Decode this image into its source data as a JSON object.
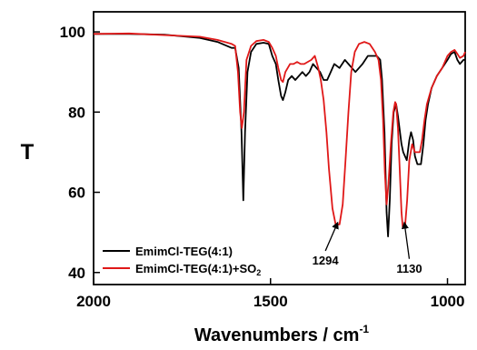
{
  "chart_data": {
    "type": "line",
    "title": "",
    "xlabel": "Wavenumbers / cm",
    "xlabel_superscript": "-1",
    "ylabel": "T",
    "xlim": [
      2000,
      950
    ],
    "ylim": [
      37,
      105
    ],
    "x_ticks": [
      2000,
      1500,
      1000
    ],
    "y_ticks": [
      40,
      60,
      80,
      100
    ],
    "legend_position": "bottom-left",
    "series": [
      {
        "name": "EmimCl-TEG(4:1)",
        "color": "#000000",
        "points": [
          [
            2000,
            99.5
          ],
          [
            1900,
            99.5
          ],
          [
            1800,
            99.3
          ],
          [
            1700,
            98.5
          ],
          [
            1650,
            97.5
          ],
          [
            1610,
            96
          ],
          [
            1600,
            96
          ],
          [
            1590,
            91
          ],
          [
            1582,
            75
          ],
          [
            1577,
            58
          ],
          [
            1572,
            75
          ],
          [
            1565,
            90
          ],
          [
            1555,
            95
          ],
          [
            1540,
            97
          ],
          [
            1520,
            97.3
          ],
          [
            1505,
            97
          ],
          [
            1495,
            94
          ],
          [
            1485,
            92
          ],
          [
            1478,
            88
          ],
          [
            1470,
            84
          ],
          [
            1465,
            83
          ],
          [
            1458,
            85
          ],
          [
            1450,
            88
          ],
          [
            1440,
            89
          ],
          [
            1430,
            88
          ],
          [
            1420,
            89
          ],
          [
            1410,
            90
          ],
          [
            1400,
            89
          ],
          [
            1390,
            90
          ],
          [
            1380,
            92
          ],
          [
            1370,
            91
          ],
          [
            1360,
            90
          ],
          [
            1350,
            88
          ],
          [
            1340,
            88
          ],
          [
            1330,
            90
          ],
          [
            1320,
            92
          ],
          [
            1305,
            91
          ],
          [
            1290,
            93
          ],
          [
            1280,
            92
          ],
          [
            1270,
            91
          ],
          [
            1260,
            90
          ],
          [
            1250,
            91
          ],
          [
            1240,
            92
          ],
          [
            1225,
            94
          ],
          [
            1210,
            94
          ],
          [
            1200,
            94
          ],
          [
            1190,
            93
          ],
          [
            1185,
            88
          ],
          [
            1178,
            75
          ],
          [
            1172,
            55
          ],
          [
            1168,
            49
          ],
          [
            1163,
            58
          ],
          [
            1158,
            72
          ],
          [
            1152,
            80
          ],
          [
            1145,
            82
          ],
          [
            1140,
            79
          ],
          [
            1130,
            72
          ],
          [
            1125,
            70
          ],
          [
            1115,
            68
          ],
          [
            1108,
            73
          ],
          [
            1103,
            75
          ],
          [
            1097,
            73
          ],
          [
            1092,
            69
          ],
          [
            1085,
            67
          ],
          [
            1075,
            67
          ],
          [
            1068,
            72
          ],
          [
            1062,
            78
          ],
          [
            1055,
            82
          ],
          [
            1045,
            86
          ],
          [
            1030,
            89
          ],
          [
            1015,
            91
          ],
          [
            1000,
            93
          ],
          [
            990,
            94.5
          ],
          [
            980,
            95
          ],
          [
            972,
            93
          ],
          [
            965,
            92
          ],
          [
            955,
            93
          ],
          [
            950,
            93
          ]
        ]
      },
      {
        "name": "EmimCl-TEG(4:1)+SO",
        "name_subscript": "2",
        "color": "#e01818",
        "points": [
          [
            2000,
            99.5
          ],
          [
            1900,
            99.6
          ],
          [
            1800,
            99.2
          ],
          [
            1700,
            98.8
          ],
          [
            1650,
            98
          ],
          [
            1610,
            97
          ],
          [
            1600,
            96.5
          ],
          [
            1592,
            90
          ],
          [
            1586,
            80
          ],
          [
            1581,
            76
          ],
          [
            1575,
            80
          ],
          [
            1568,
            93
          ],
          [
            1555,
            96.5
          ],
          [
            1540,
            97.7
          ],
          [
            1520,
            98
          ],
          [
            1505,
            97.5
          ],
          [
            1495,
            96
          ],
          [
            1485,
            94
          ],
          [
            1478,
            91
          ],
          [
            1470,
            88
          ],
          [
            1465,
            87.5
          ],
          [
            1458,
            90
          ],
          [
            1445,
            92
          ],
          [
            1435,
            92
          ],
          [
            1425,
            92.5
          ],
          [
            1415,
            92
          ],
          [
            1405,
            92
          ],
          [
            1395,
            92.5
          ],
          [
            1385,
            93
          ],
          [
            1375,
            94
          ],
          [
            1365,
            91
          ],
          [
            1358,
            88
          ],
          [
            1350,
            83
          ],
          [
            1342,
            75
          ],
          [
            1335,
            66
          ],
          [
            1325,
            56
          ],
          [
            1316,
            52
          ],
          [
            1305,
            52
          ],
          [
            1296,
            57
          ],
          [
            1288,
            68
          ],
          [
            1280,
            80
          ],
          [
            1272,
            90
          ],
          [
            1262,
            95
          ],
          [
            1250,
            97
          ],
          [
            1235,
            97.5
          ],
          [
            1220,
            97
          ],
          [
            1205,
            95
          ],
          [
            1195,
            93
          ],
          [
            1188,
            88
          ],
          [
            1182,
            78
          ],
          [
            1177,
            65
          ],
          [
            1172,
            57
          ],
          [
            1167,
            62
          ],
          [
            1160,
            72
          ],
          [
            1153,
            80
          ],
          [
            1148,
            82.5
          ],
          [
            1145,
            82
          ],
          [
            1140,
            76
          ],
          [
            1135,
            66
          ],
          [
            1130,
            55
          ],
          [
            1126,
            51
          ],
          [
            1120,
            51.5
          ],
          [
            1114,
            58
          ],
          [
            1108,
            68
          ],
          [
            1100,
            72
          ],
          [
            1092,
            70
          ],
          [
            1085,
            70
          ],
          [
            1078,
            70
          ],
          [
            1072,
            73
          ],
          [
            1065,
            78
          ],
          [
            1058,
            82
          ],
          [
            1045,
            86
          ],
          [
            1030,
            89
          ],
          [
            1015,
            91
          ],
          [
            1000,
            94
          ],
          [
            990,
            95
          ],
          [
            980,
            95.5
          ],
          [
            972,
            94.5
          ],
          [
            965,
            93.5
          ],
          [
            955,
            94
          ],
          [
            950,
            95
          ]
        ]
      }
    ],
    "annotations": [
      {
        "text": "1294",
        "point": [
          1310,
          52.5
        ],
        "label_at": [
          1345,
          42
        ]
      },
      {
        "text": "1130",
        "point": [
          1122,
          52.5
        ],
        "label_at": [
          1108,
          40
        ]
      }
    ]
  }
}
